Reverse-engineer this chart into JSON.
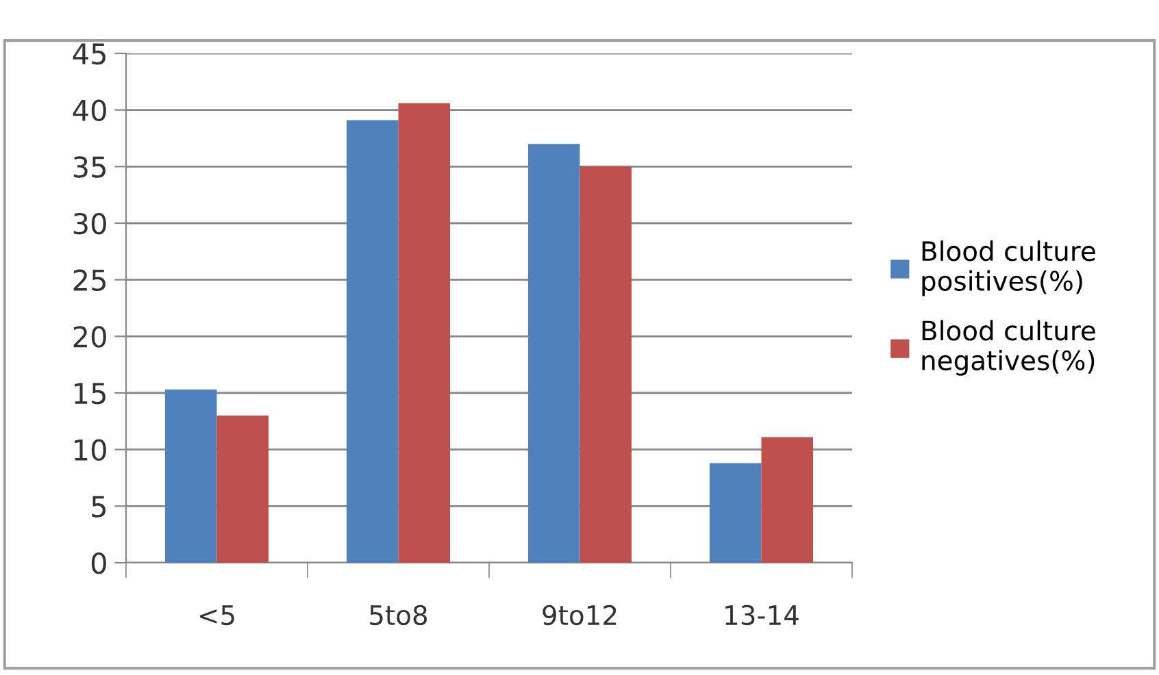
{
  "chart_data": {
    "type": "bar",
    "categories": [
      "<5",
      "5to8",
      "9to12",
      "13-14"
    ],
    "series": [
      {
        "name": "Blood culture\npositives(%)",
        "color": "#4f81bd",
        "values": [
          15.3,
          39.1,
          37.0,
          8.8
        ]
      },
      {
        "name": "Blood culture\nnegatives(%)",
        "color": "#c0504d",
        "values": [
          13.0,
          40.6,
          35.0,
          11.1
        ]
      }
    ],
    "ylim": [
      0,
      45
    ],
    "yticks": [
      0,
      5,
      10,
      15,
      20,
      25,
      30,
      35,
      40,
      45
    ],
    "grid": "y",
    "legend": "right"
  }
}
